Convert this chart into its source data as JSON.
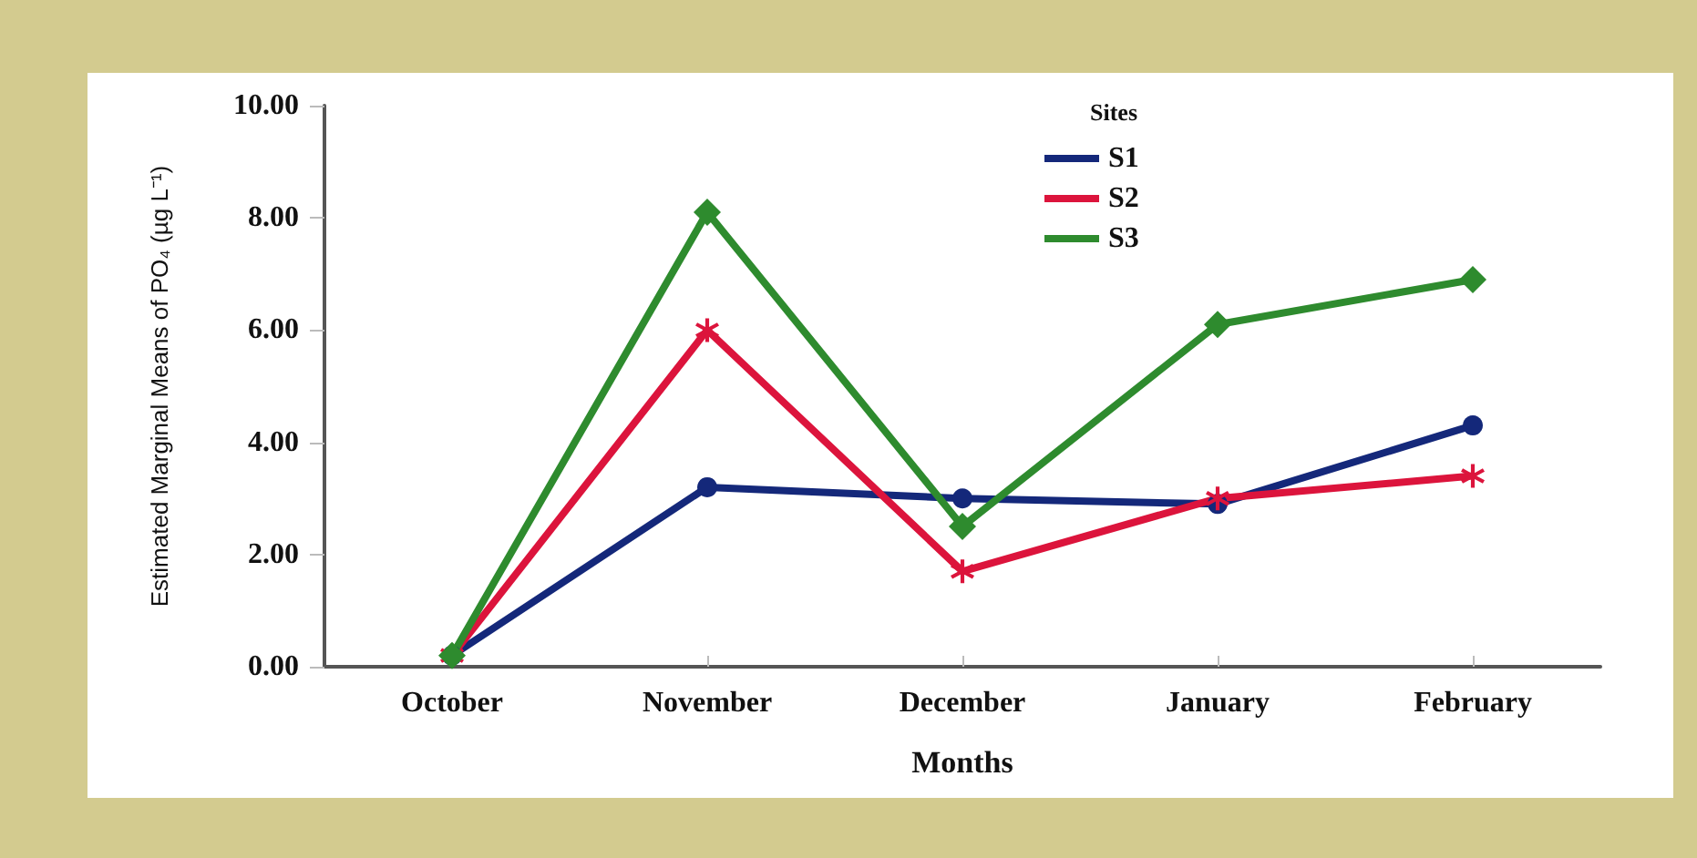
{
  "chart_data": {
    "type": "line",
    "xlabel": "Months",
    "ylabel": "Estimated Marginal Means of PO₄ (µg L⁻¹)",
    "legend_title": "Sites",
    "categories": [
      "October",
      "November",
      "December",
      "January",
      "February"
    ],
    "series": [
      {
        "name": "S1",
        "color": "#14287a",
        "marker": "circle",
        "values": [
          0.2,
          3.2,
          3.0,
          2.9,
          4.3
        ]
      },
      {
        "name": "S2",
        "color": "#dc143c",
        "marker": "star",
        "values": [
          0.2,
          6.0,
          1.7,
          3.0,
          3.4
        ]
      },
      {
        "name": "S3",
        "color": "#2e8b2e",
        "marker": "diamond",
        "values": [
          0.2,
          8.1,
          2.5,
          6.1,
          6.9
        ]
      }
    ],
    "ylim": [
      0,
      10
    ],
    "yticks": [
      {
        "value": 0,
        "label": "0.00"
      },
      {
        "value": 2,
        "label": "2.00"
      },
      {
        "value": 4,
        "label": "4.00"
      },
      {
        "value": 6,
        "label": "6.00"
      },
      {
        "value": 8,
        "label": "8.00"
      },
      {
        "value": 10,
        "label": "10.00"
      }
    ],
    "grid": false,
    "legend": "top",
    "line_style": "solid"
  }
}
